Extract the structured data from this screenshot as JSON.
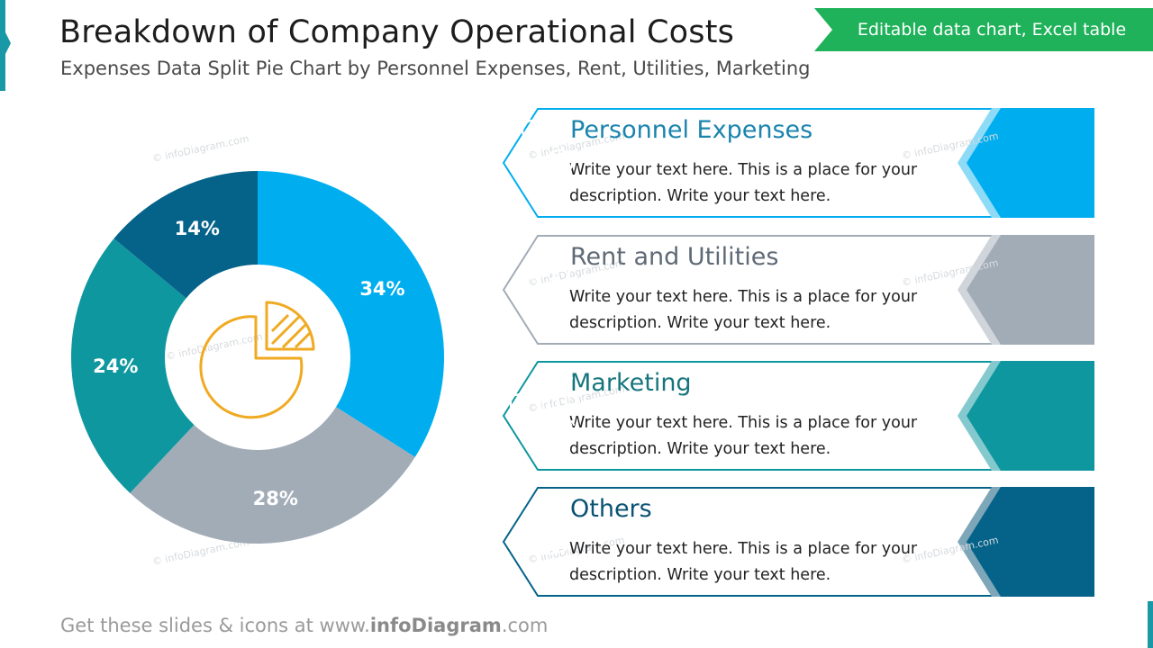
{
  "header": {
    "title": "Breakdown of Company Operational Costs",
    "subtitle": "Expenses Data Split Pie Chart by Personnel Expenses, Rent, Utilities, Marketing",
    "badge": "Editable data chart, Excel table"
  },
  "chart_data": {
    "type": "pie",
    "title": "",
    "categories": [
      "Personnel Expenses",
      "Rent and Utilities",
      "Marketing",
      "Others"
    ],
    "values": [
      34,
      28,
      24,
      14
    ],
    "labels": [
      "34%",
      "28%",
      "24%",
      "14%"
    ],
    "colors": [
      "#00aeef",
      "#a2acb7",
      "#0e979f",
      "#05638a"
    ],
    "donut": true,
    "legend": "none",
    "grid": false,
    "center_icon": "pie-chart-icon"
  },
  "cards": [
    {
      "title": "Personnel Expenses",
      "description": "Write your text here. This is a place for your description. Write your text here.",
      "color": "#00aeef",
      "light": "#8ddbf7",
      "title_color": "#1a84ad",
      "icon": "people-dollar-icon"
    },
    {
      "title": "Rent and Utilities",
      "description": "Write your text here. This is a place for your description. Write your text here.",
      "color": "#a2acb7",
      "light": "#cfd5db",
      "title_color": "#5f6a76",
      "icon": "building-dollar-icon"
    },
    {
      "title": "Marketing",
      "description": "Write your text here. This is a place for your description. Write your text here.",
      "color": "#0e979f",
      "light": "#83c9cd",
      "title_color": "#16757c",
      "icon": "megaphone-icon"
    },
    {
      "title": "Others",
      "description": "Write your text here. This is a place for your description. Write your text here.",
      "color": "#05638a",
      "light": "#7da6b8",
      "title_color": "#0a5273",
      "icon": "money-bag-icon"
    }
  ],
  "footer": {
    "prefix": "Get these slides & icons at www.",
    "brand": "infoDiagram",
    "suffix": ".com"
  },
  "watermark": "© infoDiagram.com"
}
